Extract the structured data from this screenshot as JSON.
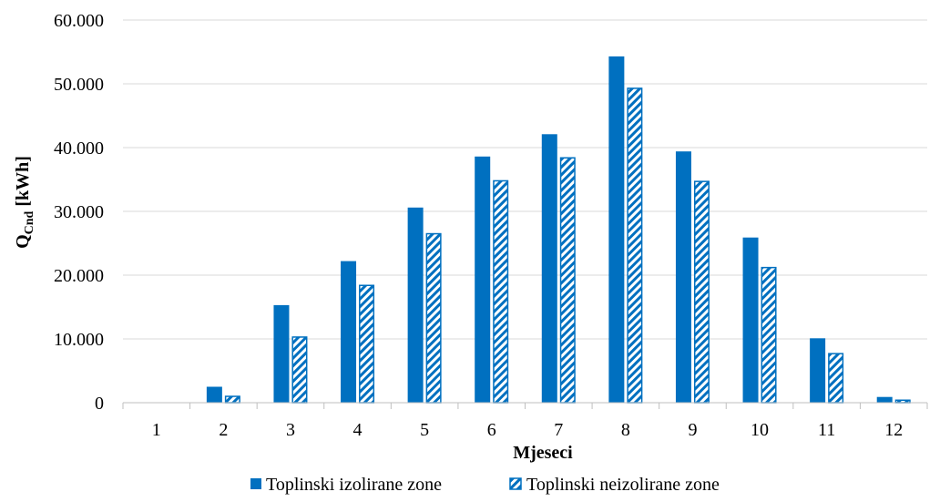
{
  "chart_data": {
    "type": "bar",
    "title": "",
    "xlabel": "Mjeseci",
    "ylabel": "Q",
    "ylabel_sub": "Cnd",
    "ylabel_unit": " [kWh]",
    "categories": [
      "1",
      "2",
      "3",
      "4",
      "5",
      "6",
      "7",
      "8",
      "9",
      "10",
      "11",
      "12"
    ],
    "ylim": [
      0,
      60000
    ],
    "yticks": [
      0,
      10000,
      20000,
      30000,
      40000,
      50000,
      60000
    ],
    "ytick_labels": [
      "0",
      "10.000",
      "20.000",
      "30.000",
      "40.000",
      "50.000",
      "60.000"
    ],
    "grid": "horizontal",
    "legend_position": "bottom",
    "series": [
      {
        "name": "Toplinski izolirane zone",
        "style": "solid",
        "color": "#0070C0",
        "values": [
          0,
          2500,
          15300,
          22200,
          30600,
          38600,
          42100,
          54300,
          39400,
          25900,
          10100,
          900
        ]
      },
      {
        "name": "Toplinski neizolirane zone",
        "style": "hatched",
        "color": "#0070C0",
        "values": [
          0,
          1100,
          10400,
          18500,
          26600,
          34900,
          38500,
          49400,
          34800,
          21300,
          7800,
          500
        ]
      }
    ]
  }
}
